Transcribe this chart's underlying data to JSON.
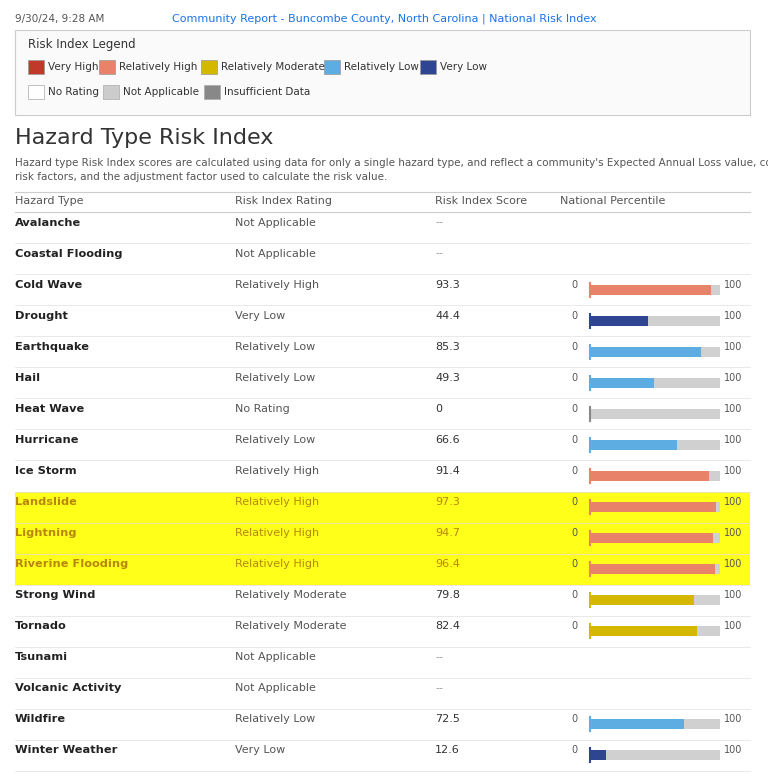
{
  "header_left": "9/30/24, 9:28 AM",
  "header_center": "Community Report - Buncombe County, North Carolina | National Risk Index",
  "legend_title": "Risk Index Legend",
  "legend_items": [
    {
      "label": "Very High",
      "color": "#c0392b"
    },
    {
      "label": "Relatively High",
      "color": "#e8836a"
    },
    {
      "label": "Relatively Moderate",
      "color": "#d4b800"
    },
    {
      "label": "Relatively Low",
      "color": "#5dade2"
    },
    {
      "label": "Very Low",
      "color": "#2e4692"
    }
  ],
  "legend_items2": [
    {
      "label": "No Rating",
      "color": "#ffffff",
      "border": "#aaaaaa"
    },
    {
      "label": "Not Applicable",
      "color": "#cccccc",
      "border": "#aaaaaa"
    },
    {
      "label": "Insufficient Data",
      "color": "#888888",
      "border": "#aaaaaa"
    }
  ],
  "section_title": "Hazard Type Risk Index",
  "desc_line1": "Hazard type Risk Index scores are calculated using data for only a single hazard type, and reflect a community's Expected Annual Loss value, community",
  "desc_line2": "risk factors, and the adjustment factor used to calculate the risk value.",
  "col_headers": [
    "Hazard Type",
    "Risk Index Rating",
    "Risk Index Score",
    "National Percentile"
  ],
  "rows": [
    {
      "hazard": "Avalanche",
      "rating": "Not Applicable",
      "score": null,
      "percentile": null,
      "color": null,
      "highlight": false
    },
    {
      "hazard": "Coastal Flooding",
      "rating": "Not Applicable",
      "score": null,
      "percentile": null,
      "color": null,
      "highlight": false
    },
    {
      "hazard": "Cold Wave",
      "rating": "Relatively High",
      "score": "93.3",
      "percentile": 93.3,
      "color": "#e8836a",
      "highlight": false
    },
    {
      "hazard": "Drought",
      "rating": "Very Low",
      "score": "44.4",
      "percentile": 44.4,
      "color": "#2e4692",
      "highlight": false
    },
    {
      "hazard": "Earthquake",
      "rating": "Relatively Low",
      "score": "85.3",
      "percentile": 85.3,
      "color": "#5dade2",
      "highlight": false
    },
    {
      "hazard": "Hail",
      "rating": "Relatively Low",
      "score": "49.3",
      "percentile": 49.3,
      "color": "#5dade2",
      "highlight": false
    },
    {
      "hazard": "Heat Wave",
      "rating": "No Rating",
      "score": "0",
      "percentile": 0,
      "color": null,
      "highlight": false
    },
    {
      "hazard": "Hurricane",
      "rating": "Relatively Low",
      "score": "66.6",
      "percentile": 66.6,
      "color": "#5dade2",
      "highlight": false
    },
    {
      "hazard": "Ice Storm",
      "rating": "Relatively High",
      "score": "91.4",
      "percentile": 91.4,
      "color": "#e8836a",
      "highlight": false
    },
    {
      "hazard": "Landslide",
      "rating": "Relatively High",
      "score": "97.3",
      "percentile": 97.3,
      "color": "#e8836a",
      "highlight": true
    },
    {
      "hazard": "Lightning",
      "rating": "Relatively High",
      "score": "94.7",
      "percentile": 94.7,
      "color": "#e8836a",
      "highlight": true
    },
    {
      "hazard": "Riverine Flooding",
      "rating": "Relatively High",
      "score": "96.4",
      "percentile": 96.4,
      "color": "#e8836a",
      "highlight": true
    },
    {
      "hazard": "Strong Wind",
      "rating": "Relatively Moderate",
      "score": "79.8",
      "percentile": 79.8,
      "color": "#d4b800",
      "highlight": false
    },
    {
      "hazard": "Tornado",
      "rating": "Relatively Moderate",
      "score": "82.4",
      "percentile": 82.4,
      "color": "#d4b800",
      "highlight": false
    },
    {
      "hazard": "Tsunami",
      "rating": "Not Applicable",
      "score": null,
      "percentile": null,
      "color": null,
      "highlight": false
    },
    {
      "hazard": "Volcanic Activity",
      "rating": "Not Applicable",
      "score": null,
      "percentile": null,
      "color": null,
      "highlight": false
    },
    {
      "hazard": "Wildfire",
      "rating": "Relatively Low",
      "score": "72.5",
      "percentile": 72.5,
      "color": "#5dade2",
      "highlight": false
    },
    {
      "hazard": "Winter Weather",
      "rating": "Very Low",
      "score": "12.6",
      "percentile": 12.6,
      "color": "#2e4692",
      "highlight": false
    }
  ],
  "bg_color": "#ffffff"
}
